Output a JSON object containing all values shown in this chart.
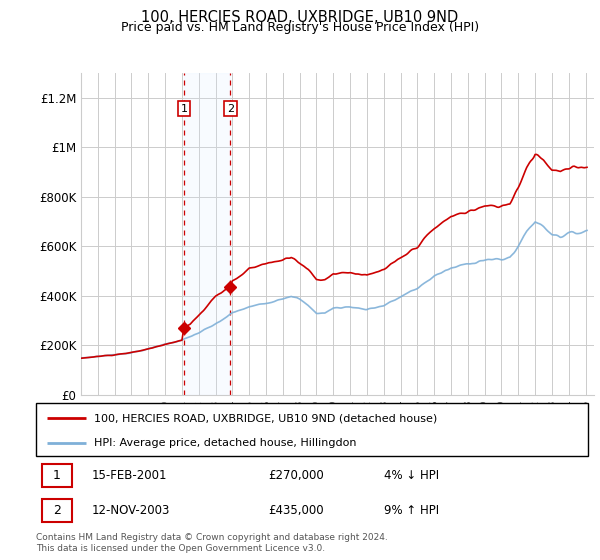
{
  "title": "100, HERCIES ROAD, UXBRIDGE, UB10 9ND",
  "subtitle": "Price paid vs. HM Land Registry's House Price Index (HPI)",
  "red_label": "100, HERCIES ROAD, UXBRIDGE, UB10 9ND (detached house)",
  "blue_label": "HPI: Average price, detached house, Hillingdon",
  "transaction1": {
    "label": "1",
    "date": "15-FEB-2001",
    "price": "£270,000",
    "hpi": "4% ↓ HPI"
  },
  "transaction2": {
    "label": "2",
    "date": "12-NOV-2003",
    "price": "£435,000",
    "hpi": "9% ↑ HPI"
  },
  "footer": "Contains HM Land Registry data © Crown copyright and database right 2024.\nThis data is licensed under the Open Government Licence v3.0.",
  "ylim": [
    0,
    1300000
  ],
  "yticks": [
    0,
    200000,
    400000,
    600000,
    800000,
    1000000,
    1200000
  ],
  "ytick_labels": [
    "£0",
    "£200K",
    "£400K",
    "£600K",
    "£800K",
    "£1M",
    "£1.2M"
  ],
  "red_color": "#cc0000",
  "blue_color": "#7fb0d8",
  "bg_color": "#ffffff",
  "grid_color": "#cccccc",
  "highlight_color": "#ddeeff",
  "t1_year": 2001.12,
  "t2_year": 2003.87,
  "t1_price": 270000,
  "t2_price": 435000
}
